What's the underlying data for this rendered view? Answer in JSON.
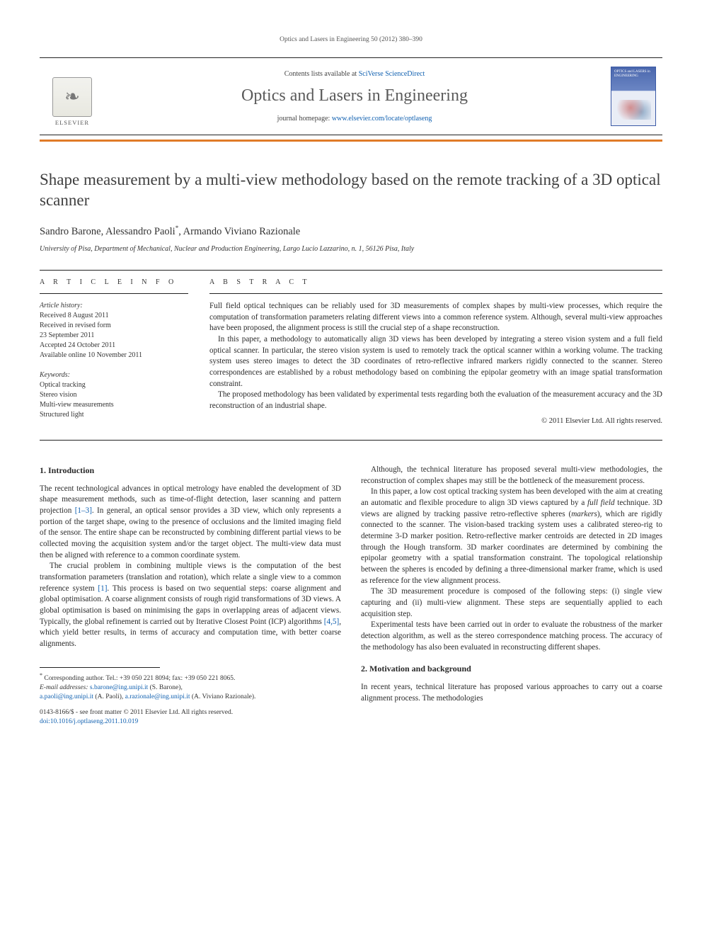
{
  "running_head": "Optics and Lasers in Engineering 50 (2012) 380–390",
  "masthead": {
    "contents_prefix": "Contents lists available at ",
    "contents_link": "SciVerse ScienceDirect",
    "journal": "Optics and Lasers in Engineering",
    "homepage_prefix": "journal homepage: ",
    "homepage_url": "www.elsevier.com/locate/optlaseng",
    "publisher_word": "ELSEVIER",
    "cover_caption": "OPTICS and LASERS in ENGINEERING"
  },
  "colors": {
    "orange_rule": "#e07b28",
    "link": "#1060b0",
    "rule": "#222222",
    "text": "#2a2a2a"
  },
  "article": {
    "title": "Shape measurement by a multi-view methodology based on the remote tracking of a 3D optical scanner",
    "authors_html": "Sandro Barone, Alessandro Paoli*, Armando Viviano Razionale",
    "authors": [
      {
        "name": "Sandro Barone"
      },
      {
        "name": "Alessandro Paoli",
        "corresponding": true
      },
      {
        "name": "Armando Viviano Razionale"
      }
    ],
    "affiliation": "University of Pisa, Department of Mechanical, Nuclear and Production Engineering, Largo Lucio Lazzarino, n. 1, 56126 Pisa, Italy"
  },
  "article_info": {
    "label": "A R T I C L E  I N F O",
    "history_label": "Article history:",
    "history": [
      "Received 8 August 2011",
      "Received in revised form",
      "23 September 2011",
      "Accepted 24 October 2011",
      "Available online 10 November 2011"
    ],
    "keywords_label": "Keywords:",
    "keywords": [
      "Optical tracking",
      "Stereo vision",
      "Multi-view measurements",
      "Structured light"
    ]
  },
  "abstract": {
    "label": "A B S T R A C T",
    "paragraphs": [
      "Full field optical techniques can be reliably used for 3D measurements of complex shapes by multi-view processes, which require the computation of transformation parameters relating different views into a common reference system. Although, several multi-view approaches have been proposed, the alignment process is still the crucial step of a shape reconstruction.",
      "In this paper, a methodology to automatically align 3D views has been developed by integrating a stereo vision system and a full field optical scanner. In particular, the stereo vision system is used to remotely track the optical scanner within a working volume. The tracking system uses stereo images to detect the 3D coordinates of retro-reflective infrared markers rigidly connected to the scanner. Stereo correspondences are established by a robust methodology based on combining the epipolar geometry with an image spatial transformation constraint.",
      "The proposed methodology has been validated by experimental tests regarding both the evaluation of the measurement accuracy and the 3D reconstruction of an industrial shape."
    ],
    "copyright": "© 2011 Elsevier Ltd. All rights reserved."
  },
  "sections": {
    "s1": {
      "heading": "1.  Introduction",
      "paragraphs": [
        "The recent technological advances in optical metrology have enabled the development of 3D shape measurement methods, such as time-of-flight detection, laser scanning and pattern projection [1–3]. In general, an optical sensor provides a 3D view, which only represents a portion of the target shape, owing to the presence of occlusions and the limited imaging field of the sensor. The entire shape can be reconstructed by combining different partial views to be collected moving the acquisition system and/or the target object. The multi-view data must then be aligned with reference to a common coordinate system.",
        "The crucial problem in combining multiple views is the computation of the best transformation parameters (translation and rotation), which relate a single view to a common reference system [1]. This process is based on two sequential steps: coarse alignment and global optimisation. A coarse alignment consists of rough rigid transformations of 3D views. A global optimisation is based on minimising the gaps in overlapping areas of adjacent views. Typically, the global refinement is carried out by Iterative Closest Point (ICP) algorithms [4,5], which yield better results, in terms of accuracy and computation time, with better coarse alignments.",
        "Although, the technical literature has proposed several multi-view methodologies, the reconstruction of complex shapes may still be the bottleneck of the measurement process.",
        "In this paper, a low cost optical tracking system has been developed with the aim at creating an automatic and flexible procedure to align 3D views captured by a full field technique. 3D views are aligned by tracking passive retro-reflective spheres (markers), which are rigidly connected to the scanner. The vision-based tracking system uses a calibrated stereo-rig to determine 3-D marker position. Retro-reflective marker centroids are detected in 2D images through the Hough transform. 3D marker coordinates are determined by combining the epipolar geometry with a spatial transformation constraint. The topological relationship between the spheres is encoded by defining a three-dimensional marker frame, which is used as reference for the view alignment process.",
        "The 3D measurement procedure is composed of the following steps: (i) single view capturing and (ii) multi-view alignment. These steps are sequentially applied to each acquisition step.",
        "Experimental tests have been carried out in order to evaluate the robustness of the marker detection algorithm, as well as the stereo correspondence matching process. The accuracy of the methodology has also been evaluated in reconstructing different shapes."
      ]
    },
    "s2": {
      "heading": "2.  Motivation and background",
      "paragraphs": [
        "In recent years, technical literature has proposed various approaches to carry out a coarse alignment process. The methodologies"
      ]
    }
  },
  "citations_in_text": [
    "[1–3]",
    "[1]",
    "[4,5]"
  ],
  "italics_in_text": [
    "full field",
    "markers"
  ],
  "footnotes": {
    "corresponding": "Corresponding author. Tel.: +39 050 221 8094; fax: +39 050 221 8065.",
    "emails_label": "E-mail addresses:",
    "emails": [
      {
        "addr": "s.barone@ing.unipi.it",
        "who": "(S. Barone)"
      },
      {
        "addr": "a.paoli@ing.unipi.it",
        "who": "(A. Paoli)"
      },
      {
        "addr": "a.razionale@ing.unipi.it",
        "who": "(A. Viviano Razionale)"
      }
    ]
  },
  "bottom": {
    "issn_line": "0143-8166/$ - see front matter © 2011 Elsevier Ltd. All rights reserved.",
    "doi_line": "doi:10.1016/j.optlaseng.2011.10.019"
  }
}
